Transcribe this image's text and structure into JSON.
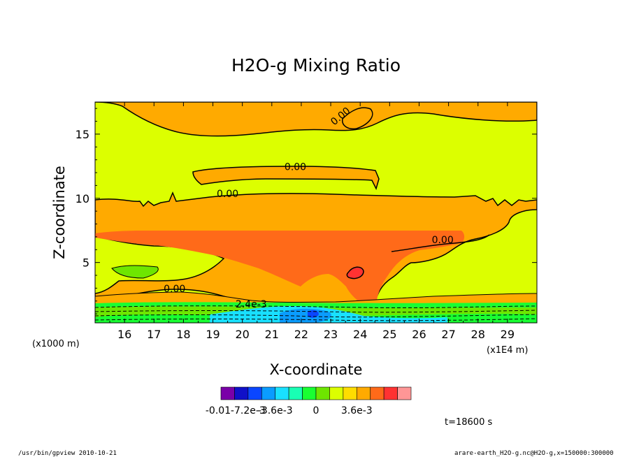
{
  "chart_data": {
    "type": "contour",
    "title": "H2O-g Mixing Ratio",
    "xlabel": "X-coordinate",
    "ylabel": "Z-coordinate",
    "x_unit_left": "(x1000 m)",
    "x_unit_right": "(x1E4 m)",
    "x_ticks": [
      16,
      17,
      18,
      19,
      20,
      21,
      22,
      23,
      24,
      25,
      26,
      27,
      28,
      29
    ],
    "xlim": [
      15.0,
      30.0
    ],
    "y_ticks": [
      5,
      10,
      15
    ],
    "ylim": [
      0.3,
      17.5
    ],
    "contour_labels": [
      "0.00",
      "0.00",
      "0.00",
      "0.00",
      "0.00",
      "2.4e-3"
    ],
    "colorbar": {
      "colors": [
        "#7a00a8",
        "#1010c8",
        "#0a46ff",
        "#0a9cff",
        "#19e0ff",
        "#19ffb4",
        "#19ff32",
        "#6ee600",
        "#dcff00",
        "#ffdd00",
        "#ffaa00",
        "#ff6a19",
        "#ff3232",
        "#ff9696"
      ],
      "tick_labels": [
        "-0.01",
        "-7.2e-3",
        "-3.6e-3",
        "0",
        "3.6e-3"
      ]
    },
    "time_label": "t=18600 s",
    "footer_left": "/usr/bin/gpview   2010-10-21",
    "footer_right": "arare-earth_H2O-g.nc@H2O-g,x=150000:300000",
    "colors": {
      "background": "#dcff00",
      "band_orange": "#ffaa00",
      "core_red": "#ff6a19",
      "cell_red": "#ff3232",
      "low_green": "#19ff32",
      "low_cyan": "#19e0ff",
      "low_blue": "#0a9cff"
    }
  }
}
